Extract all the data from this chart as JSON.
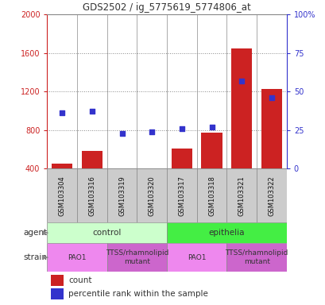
{
  "title": "GDS2502 / ig_5775619_5774806_at",
  "samples": [
    "GSM103304",
    "GSM103316",
    "GSM103319",
    "GSM103320",
    "GSM103317",
    "GSM103318",
    "GSM103321",
    "GSM103322"
  ],
  "counts": [
    450,
    580,
    330,
    325,
    610,
    770,
    1650,
    1230
  ],
  "percentile_ranks": [
    36,
    37,
    23,
    24,
    26,
    27,
    57,
    46
  ],
  "ylim_left": [
    400,
    2000
  ],
  "ylim_right": [
    0,
    100
  ],
  "yticks_left": [
    400,
    800,
    1200,
    1600,
    2000
  ],
  "yticks_right": [
    0,
    25,
    50,
    75,
    100
  ],
  "bar_color": "#cc2222",
  "dot_color": "#3333cc",
  "agent_groups": [
    {
      "label": "control",
      "start": 0,
      "end": 4,
      "color": "#ccffcc"
    },
    {
      "label": "epithelia",
      "start": 4,
      "end": 8,
      "color": "#44ee44"
    }
  ],
  "strain_groups": [
    {
      "label": "PAO1",
      "start": 0,
      "end": 2,
      "color": "#ee88ee"
    },
    {
      "label": "TTSS/rhamnolipid\nmutant",
      "start": 2,
      "end": 4,
      "color": "#cc66cc"
    },
    {
      "label": "PAO1",
      "start": 4,
      "end": 6,
      "color": "#ee88ee"
    },
    {
      "label": "TTSS/rhamnolipid\nmutant",
      "start": 6,
      "end": 8,
      "color": "#cc66cc"
    }
  ],
  "left_axis_color": "#cc2222",
  "right_axis_color": "#3333cc",
  "grid_color": "#888888",
  "background_color": "#ffffff",
  "label_box_color": "#cccccc",
  "border_color": "#888888"
}
